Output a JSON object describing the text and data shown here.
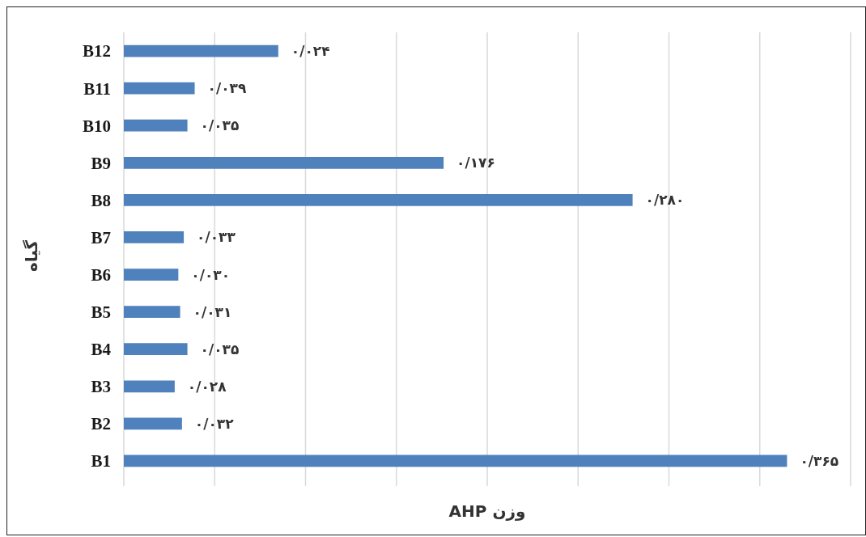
{
  "chart_data": {
    "type": "bar",
    "orientation": "horizontal",
    "xlabel": "وزن AHP",
    "ylabel": "گیاه",
    "categories": [
      "B12",
      "B11",
      "B10",
      "B9",
      "B8",
      "B7",
      "B6",
      "B5",
      "B4",
      "B3",
      "B2",
      "B1"
    ],
    "values": [
      0.085,
      0.039,
      0.035,
      0.176,
      0.28,
      0.033,
      0.03,
      0.031,
      0.035,
      0.028,
      0.032,
      0.365
    ],
    "value_labels": [
      "۰/۰۲۴",
      "۰/۰۳۹",
      "۰/۰۳۵",
      "۰/۱۷۶",
      "۰/۲۸۰",
      "۰/۰۳۳",
      "۰/۰۳۰",
      "۰/۰۳۱",
      "۰/۰۳۵",
      "۰/۰۲۸",
      "۰/۰۳۲",
      "۰/۳۶۵"
    ],
    "color": "#4f81bd",
    "xlim": [
      0,
      0.4
    ],
    "xticks": [
      {
        "value": 0,
        "label": null
      },
      {
        "value": 0.05,
        "label": null
      },
      {
        "value": 0.1,
        "label": null
      },
      {
        "value": 0.15,
        "label": null
      },
      {
        "value": 0.2,
        "label": null
      },
      {
        "value": 0.25,
        "label": null
      },
      {
        "value": 0.3,
        "label": null
      },
      {
        "value": 0.35,
        "label": null
      },
      {
        "value": 0.4,
        "label": null
      }
    ],
    "grid": "x",
    "tick_labels": "y",
    "legend": false
  }
}
